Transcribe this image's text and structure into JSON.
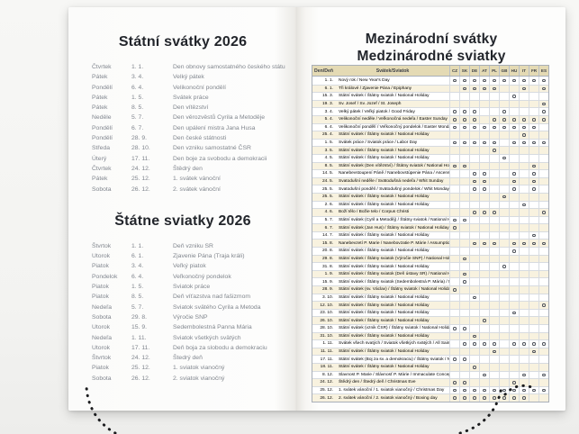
{
  "left_page": {
    "czech": {
      "title": "Státní svátky 2026",
      "holidays": [
        {
          "day": "Čtvrtek",
          "date": "1. 1.",
          "name": "Den obnovy samostatného českého státu"
        },
        {
          "day": "Pátek",
          "date": "3. 4.",
          "name": "Velký pátek"
        },
        {
          "day": "Pondělí",
          "date": "6. 4.",
          "name": "Velikonoční pondělí"
        },
        {
          "day": "Pátek",
          "date": "1. 5.",
          "name": "Svátek práce"
        },
        {
          "day": "Pátek",
          "date": "8. 5.",
          "name": "Den vítězství"
        },
        {
          "day": "Neděle",
          "date": "5. 7.",
          "name": "Den věrozvěstů Cyrila a Metoděje"
        },
        {
          "day": "Pondělí",
          "date": "6. 7.",
          "name": "Den upálení mistra Jana Husa"
        },
        {
          "day": "Pondělí",
          "date": "28. 9.",
          "name": "Den české státnosti"
        },
        {
          "day": "Středa",
          "date": "28. 10.",
          "name": "Den vzniku samostatné ČSR"
        },
        {
          "day": "Úterý",
          "date": "17. 11.",
          "name": "Den boje za svobodu a demokracii"
        },
        {
          "day": "Čtvrtek",
          "date": "24. 12.",
          "name": "Štědrý den"
        },
        {
          "day": "Pátek",
          "date": "25. 12.",
          "name": "1. svátek vánoční"
        },
        {
          "day": "Sobota",
          "date": "26. 12.",
          "name": "2. svátek vánoční"
        }
      ]
    },
    "slovak": {
      "title": "Štátne sviatky 2026",
      "holidays": [
        {
          "day": "Štvrtok",
          "date": "1. 1.",
          "name": "Deň vzniku SR"
        },
        {
          "day": "Utorok",
          "date": "6. 1.",
          "name": "Zjavenie Pána (Traja králi)"
        },
        {
          "day": "Piatok",
          "date": "3. 4.",
          "name": "Veľký piatok"
        },
        {
          "day": "Pondelok",
          "date": "6. 4.",
          "name": "Veľkonočný pondelok"
        },
        {
          "day": "Piatok",
          "date": "1. 5.",
          "name": "Sviatok práce"
        },
        {
          "day": "Piatok",
          "date": "8. 5.",
          "name": "Deň víťazstva nad fašizmom"
        },
        {
          "day": "Nedeľa",
          "date": "5. 7.",
          "name": "Sviatok svätého Cyrila a Metoda"
        },
        {
          "day": "Sobota",
          "date": "29. 8.",
          "name": "Výročie SNP"
        },
        {
          "day": "Utorok",
          "date": "15. 9.",
          "name": "Sedembolestná Panna Mária"
        },
        {
          "day": "Nedeľa",
          "date": "1. 11.",
          "name": "Sviatok všetkých svätých"
        },
        {
          "day": "Utorok",
          "date": "17. 11.",
          "name": "Deň boja za slobodu a demokraciu"
        },
        {
          "day": "Štvrtok",
          "date": "24. 12.",
          "name": "Štedrý deň"
        },
        {
          "day": "Piatok",
          "date": "25. 12.",
          "name": "1. sviatok vianočný"
        },
        {
          "day": "Sobota",
          "date": "26. 12.",
          "name": "2. sviatok vianočný"
        }
      ]
    }
  },
  "right_page": {
    "title_line1": "Mezinárodní svátky",
    "title_line2": "Medzinárodné sviatky",
    "table": {
      "col_day": "Den/Deň",
      "col_holiday": "Svátek/Sviatok",
      "countries": [
        "CZ",
        "SK",
        "DE",
        "AT",
        "PL",
        "GB",
        "HU",
        "IT",
        "FR",
        "ES"
      ],
      "rows": [
        {
          "date": "1. 1.",
          "name": "Nový rok / New Year's Day",
          "marks": [
            "CZ",
            "SK",
            "DE",
            "AT",
            "PL",
            "GB",
            "HU",
            "IT",
            "FR",
            "ES"
          ]
        },
        {
          "date": "6. 1.",
          "name": "Tři králové / Zjavenie Pána / Epiphany",
          "marks": [
            "SK",
            "DE",
            "AT",
            "PL",
            "IT",
            "ES"
          ]
        },
        {
          "date": "15. 3.",
          "name": "Státní svátek / Štátny sviatok / National Holiday",
          "marks": [
            "HU"
          ]
        },
        {
          "date": "19. 3.",
          "name": "Sv. Josef / Sv. Jozef / St. Joseph",
          "marks": [
            "ES"
          ]
        },
        {
          "date": "3. 4.",
          "name": "Velký pátek / Veľký piatok / Good Friday",
          "marks": [
            "CZ",
            "SK",
            "DE",
            "GB",
            "ES"
          ]
        },
        {
          "date": "5. 4.",
          "name": "Velikonoční neděle / Veľkonočná nedeľa / Easter Sunday",
          "marks": [
            "CZ",
            "SK",
            "DE",
            "PL",
            "GB",
            "HU",
            "IT",
            "FR",
            "ES"
          ]
        },
        {
          "date": "6. 4.",
          "name": "Velikonoční pondělí / Veľkonočný pondelok / Easter Monday",
          "marks": [
            "CZ",
            "SK",
            "DE",
            "AT",
            "PL",
            "GB",
            "HU",
            "IT",
            "FR"
          ]
        },
        {
          "date": "25. 4.",
          "name": "Státní svátek / Štátny sviatok / National Holiday",
          "marks": [
            "IT"
          ]
        },
        {
          "date": "1. 5.",
          "name": "Svátek práce / Sviatok práce / Labor Day",
          "marks": [
            "CZ",
            "SK",
            "DE",
            "AT",
            "PL",
            "HU",
            "IT",
            "FR",
            "ES"
          ]
        },
        {
          "date": "3. 5.",
          "name": "Státní svátek / Štátny sviatok / National Holiday",
          "marks": [
            "PL"
          ]
        },
        {
          "date": "4. 5.",
          "name": "Státní svátek / Štátny sviatok / National Holiday",
          "marks": [
            "GB"
          ]
        },
        {
          "date": "8. 5.",
          "name": "Státní svátek (Den vítězství) / Štátny sviatok / National Holiday",
          "marks": [
            "CZ",
            "SK",
            "FR"
          ]
        },
        {
          "date": "14. 5.",
          "name": "Nanebevstoupení Páně / Nanebovstúpenie Pána / Ascension Day",
          "marks": [
            "DE",
            "AT",
            "HU",
            "FR"
          ]
        },
        {
          "date": "24. 5.",
          "name": "Svatodušní neděle / Svätodušná nedeľa / Whit Sunday",
          "marks": [
            "DE",
            "AT",
            "HU",
            "FR"
          ]
        },
        {
          "date": "25. 5.",
          "name": "Svatodušní pondělí / Svätodušný pondelok / Whit Monday",
          "marks": [
            "DE",
            "AT",
            "HU",
            "FR"
          ]
        },
        {
          "date": "25. 5.",
          "name": "Státní svátek / Štátny sviatok / National Holiday",
          "marks": [
            "GB"
          ]
        },
        {
          "date": "2. 6.",
          "name": "Státní svátek / Štátny sviatok / National Holiday",
          "marks": [
            "IT"
          ]
        },
        {
          "date": "4. 6.",
          "name": "Boží tělo / Božie telo / Corpus Christi",
          "marks": [
            "DE",
            "AT",
            "PL",
            "ES"
          ]
        },
        {
          "date": "5. 7.",
          "name": "Státní svátek (Cyril a Metoděj) / Štátny sviatok / National Holiday",
          "marks": [
            "CZ",
            "SK"
          ]
        },
        {
          "date": "6. 7.",
          "name": "Státní svátek (Jan Hus) / Štátny sviatok / National Holiday",
          "marks": [
            "CZ"
          ]
        },
        {
          "date": "14. 7.",
          "name": "Státní svátek / Štátny sviatok / National Holiday",
          "marks": [
            "FR"
          ]
        },
        {
          "date": "15. 8.",
          "name": "Nanebevzetí P. Marie / Nanebovzatie P. Márie / Assumption of Virgin Mary",
          "marks": [
            "DE",
            "AT",
            "PL",
            "HU",
            "IT",
            "FR",
            "ES"
          ]
        },
        {
          "date": "20. 8.",
          "name": "Státní svátek / Štátny sviatok / National Holiday",
          "marks": [
            "HU"
          ]
        },
        {
          "date": "29. 8.",
          "name": "Státní svátek / Štátny sviatok (Výročie SNP) / National Holiday",
          "marks": [
            "SK"
          ]
        },
        {
          "date": "31. 8.",
          "name": "Státní svátek / Štátny sviatok / National Holiday",
          "marks": [
            "GB"
          ]
        },
        {
          "date": "1. 9.",
          "name": "Státní svátek / Štátny sviatok (Deň ústavy SR) / National Holiday",
          "marks": [
            "SK"
          ]
        },
        {
          "date": "15. 9.",
          "name": "Státní svátek / Štátny sviatok (Sedembolestná P. Mária) / National Holiday",
          "marks": [
            "SK"
          ]
        },
        {
          "date": "28. 9.",
          "name": "Státní svátek (sv. Václav) / Štátny sviatok / National Holiday",
          "marks": [
            "CZ"
          ]
        },
        {
          "date": "3. 10.",
          "name": "Státní svátek / Štátny sviatok / National Holiday",
          "marks": [
            "DE"
          ]
        },
        {
          "date": "12. 10.",
          "name": "Státní svátek / Štátny sviatok / National Holiday",
          "marks": [
            "ES"
          ]
        },
        {
          "date": "23. 10.",
          "name": "Státní svátek / Štátny sviatok / National Holiday",
          "marks": [
            "HU"
          ]
        },
        {
          "date": "26. 10.",
          "name": "Státní svátek / Štátny sviatok / National Holiday",
          "marks": [
            "AT"
          ]
        },
        {
          "date": "28. 10.",
          "name": "Státní svátek (vznik ČSR) / Štátny sviatok / National Holiday",
          "marks": [
            "CZ",
            "SK"
          ]
        },
        {
          "date": "31. 10.",
          "name": "Státní svátek / Štátny sviatok / National Holiday",
          "marks": [
            "DE"
          ]
        },
        {
          "date": "1. 11.",
          "name": "Svátek všech svatých / Sviatok všetkých svätých / All Saints Day",
          "marks": [
            "SK",
            "DE",
            "AT",
            "PL",
            "HU",
            "IT",
            "FR",
            "ES"
          ]
        },
        {
          "date": "11. 11.",
          "name": "Státní svátek / Štátny sviatok / National Holiday",
          "marks": [
            "PL",
            "FR"
          ]
        },
        {
          "date": "17. 11.",
          "name": "Státní svátek (Boj za sv. a demokraciu) / Štátny sviatok / National Holiday",
          "marks": [
            "CZ",
            "SK"
          ]
        },
        {
          "date": "18. 11.",
          "name": "Státní svátek / Štátny sviatok / National Holiday",
          "marks": [
            "DE"
          ]
        },
        {
          "date": "8. 12.",
          "name": "Slavnost P. Marie / Slávnosť P. Márie / Immaculate Conception",
          "marks": [
            "AT",
            "IT",
            "ES"
          ]
        },
        {
          "date": "24. 12.",
          "name": "Štědrý den / Štedrý deň / Christmas Eve",
          "marks": [
            "CZ",
            "SK",
            "HU"
          ]
        },
        {
          "date": "25. 12.",
          "name": "1. svátek vánoční / 1. sviatok vianočný / Christmas Day",
          "marks": [
            "CZ",
            "SK",
            "DE",
            "AT",
            "PL",
            "GB",
            "HU",
            "IT",
            "FR",
            "ES"
          ]
        },
        {
          "date": "26. 12.",
          "name": "2. svátek vánoční / 2. sviatok vianočný / Boxing day",
          "marks": [
            "CZ",
            "SK",
            "DE",
            "AT",
            "PL",
            "GB",
            "HU",
            "IT"
          ]
        }
      ]
    }
  },
  "colors": {
    "table_header_bg": "#e4dab4",
    "row_stripe_bg": "#f8f2df",
    "grid_line": "#d7dbe0",
    "dot_ring": "#4e525a",
    "list_text": "#81868e",
    "title_text": "#22252b",
    "backdrop": "#f5f5f3",
    "page": "#fdfdfc"
  }
}
